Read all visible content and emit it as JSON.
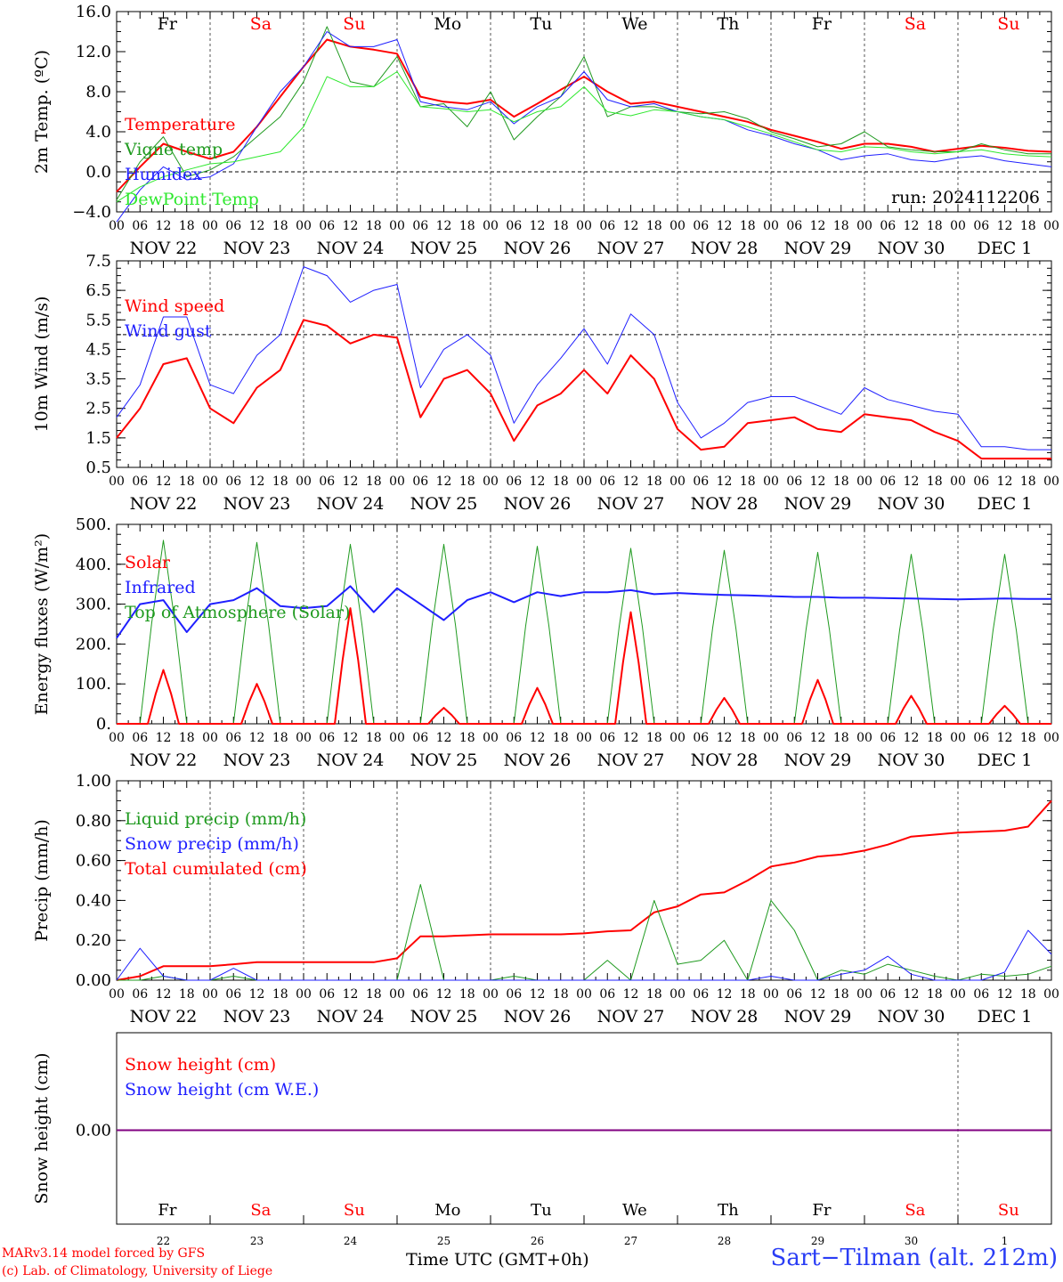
{
  "footer": {
    "model_credit": "MARv3.14 model forced by GFS",
    "lab_credit": "(c) Lab. of Climatology, University of Liege",
    "station": "Sart−Tilman (alt. 212m)",
    "time_axis_label": "Time UTC (GMT+0h)"
  },
  "run_label": "run: 2024112206",
  "days": {
    "weekday_labels": [
      "Fr",
      "Sa",
      "Su",
      "Mo",
      "Tu",
      "We",
      "Th",
      "Fr",
      "Sa",
      "Su"
    ],
    "weekend_flags": [
      false,
      true,
      true,
      false,
      false,
      false,
      false,
      false,
      true,
      true
    ],
    "date_labels": [
      "NOV 22",
      "NOV 23",
      "NOV 24",
      "NOV 25",
      "NOV 26",
      "NOV 27",
      "NOV 28",
      "NOV 29",
      "NOV 30",
      "DEC  1"
    ],
    "day_numbers": [
      "22",
      "23",
      "24",
      "25",
      "26",
      "27",
      "28",
      "29",
      "30",
      "1"
    ],
    "hour_ticks": [
      "00",
      "06",
      "12",
      "18"
    ],
    "hour_ticks_last": "00"
  },
  "colors": {
    "red": "#ff0000",
    "green": "#1f9a1f",
    "blue": "#1f1fff",
    "lightgreen": "#2ee82e",
    "purple": "#800080",
    "weekend": "#ff0000",
    "weekday": "#000000"
  },
  "chart_data": [
    {
      "type": "line",
      "ylabel": "2m Temp. (ºC)",
      "ylim": [
        -4.0,
        16.0
      ],
      "yticks": [
        "16.0",
        "12.0",
        "8.0",
        "4.0",
        "0.0",
        "−4.0"
      ],
      "ytick_values": [
        16,
        12,
        8,
        4,
        0,
        -4
      ],
      "ref_line": 0,
      "x_hours": [
        0,
        6,
        12,
        18,
        24,
        30,
        36,
        42,
        48,
        54,
        60,
        66,
        72,
        78,
        84,
        90,
        96,
        102,
        108,
        114,
        120,
        126,
        132,
        138,
        144,
        150,
        156,
        162,
        168,
        174,
        180,
        186,
        192,
        198,
        204,
        210,
        216,
        222,
        228,
        234,
        240
      ],
      "series": [
        {
          "name": "Temperature",
          "color": "#ff0000",
          "width": 2,
          "values": [
            -2.0,
            0.5,
            2.8,
            2.0,
            1.3,
            2.0,
            4.5,
            7.5,
            10.5,
            13.2,
            12.5,
            12.2,
            11.8,
            7.5,
            7.0,
            6.8,
            7.2,
            5.5,
            6.8,
            8.2,
            9.5,
            8.0,
            6.8,
            7.0,
            6.5,
            6.0,
            5.5,
            5.0,
            4.2,
            3.6,
            3.0,
            2.3,
            2.8,
            2.8,
            2.5,
            2.0,
            2.3,
            2.6,
            2.4,
            2.1,
            2.0
          ]
        },
        {
          "name": "Vigne temp",
          "color": "#1f9a1f",
          "width": 1,
          "values": [
            -2.8,
            1.0,
            3.5,
            -0.5,
            0.2,
            1.5,
            3.5,
            5.5,
            9.0,
            14.5,
            9.0,
            8.5,
            11.5,
            6.5,
            6.8,
            4.5,
            8.0,
            3.2,
            5.5,
            7.5,
            11.5,
            5.5,
            6.5,
            6.5,
            6.0,
            5.8,
            6.0,
            5.3,
            4.0,
            3.3,
            2.5,
            2.8,
            4.0,
            2.5,
            2.2,
            2.0,
            2.0,
            2.8,
            2.2,
            1.8,
            1.8
          ]
        },
        {
          "name": "Humidex",
          "color": "#1f1fff",
          "width": 1,
          "values": [
            -5.0,
            -1.8,
            0.5,
            -0.8,
            -0.5,
            0.8,
            4.5,
            8.0,
            10.5,
            14.0,
            12.5,
            12.5,
            13.2,
            7.0,
            6.5,
            6.2,
            7.0,
            4.8,
            6.5,
            7.5,
            10.0,
            7.2,
            6.5,
            6.8,
            6.0,
            5.5,
            5.2,
            4.2,
            3.6,
            2.8,
            2.2,
            1.2,
            1.6,
            1.8,
            1.2,
            1.0,
            1.4,
            1.6,
            1.1,
            0.8,
            0.5
          ]
        },
        {
          "name": "DewPoint Temp",
          "color": "#2ee82e",
          "width": 1,
          "values": [
            -3.0,
            -1.5,
            -0.5,
            0.2,
            0.8,
            1.0,
            1.5,
            2.0,
            4.5,
            9.5,
            8.5,
            8.5,
            10.0,
            6.5,
            6.3,
            6.0,
            6.2,
            5.0,
            6.0,
            6.5,
            8.5,
            6.0,
            5.6,
            6.2,
            6.0,
            5.5,
            5.2,
            4.5,
            3.8,
            3.0,
            2.2,
            2.0,
            2.5,
            2.4,
            2.0,
            1.8,
            2.0,
            2.2,
            1.8,
            1.6,
            1.5
          ]
        }
      ],
      "legend": [
        {
          "label": "Temperature",
          "color": "#ff0000"
        },
        {
          "label": "Vigne temp",
          "color": "#1f9a1f"
        },
        {
          "label": "Humidex",
          "color": "#1f1fff"
        },
        {
          "label": "DewPoint Temp",
          "color": "#2ee82e"
        }
      ]
    },
    {
      "type": "line",
      "ylabel": "10m Wind (m/s)",
      "ylim": [
        0.5,
        7.5
      ],
      "yticks": [
        "7.5",
        "6.5",
        "5.5",
        "4.5",
        "3.5",
        "2.5",
        "1.5",
        "0.5"
      ],
      "ytick_values": [
        7.5,
        6.5,
        5.5,
        4.5,
        3.5,
        2.5,
        1.5,
        0.5
      ],
      "ref_line": 5.0,
      "x_hours": [
        0,
        6,
        12,
        18,
        24,
        30,
        36,
        42,
        48,
        54,
        60,
        66,
        72,
        78,
        84,
        90,
        96,
        102,
        108,
        114,
        120,
        126,
        132,
        138,
        144,
        150,
        156,
        162,
        168,
        174,
        180,
        186,
        192,
        198,
        204,
        210,
        216,
        222,
        228,
        234,
        240
      ],
      "series": [
        {
          "name": "Wind speed",
          "color": "#ff0000",
          "width": 2,
          "values": [
            1.5,
            2.5,
            4.0,
            4.2,
            2.5,
            2.0,
            3.2,
            3.8,
            5.5,
            5.3,
            4.7,
            5.0,
            4.9,
            2.2,
            3.5,
            3.8,
            3.0,
            1.4,
            2.6,
            3.0,
            3.8,
            3.0,
            4.3,
            3.5,
            1.8,
            1.1,
            1.2,
            2.0,
            2.1,
            2.2,
            1.8,
            1.7,
            2.3,
            2.2,
            2.1,
            1.7,
            1.4,
            0.8,
            0.8,
            0.8,
            0.8
          ]
        },
        {
          "name": "Wind gust",
          "color": "#1f1fff",
          "width": 1,
          "values": [
            2.2,
            3.3,
            5.6,
            5.6,
            3.3,
            3.0,
            4.3,
            5.0,
            7.3,
            7.0,
            6.1,
            6.5,
            6.7,
            3.2,
            4.5,
            5.0,
            4.3,
            2.0,
            3.3,
            4.2,
            5.2,
            4.0,
            5.7,
            5.0,
            2.7,
            1.5,
            2.0,
            2.7,
            2.9,
            2.9,
            2.6,
            2.3,
            3.2,
            2.8,
            2.6,
            2.4,
            2.3,
            1.2,
            1.2,
            1.1,
            1.1
          ]
        }
      ],
      "legend": [
        {
          "label": "Wind speed",
          "color": "#ff0000"
        },
        {
          "label": "Wind gust",
          "color": "#1f1fff"
        }
      ]
    },
    {
      "type": "line",
      "ylabel": "Energy fluxes (W/m²)",
      "ylim": [
        0,
        500
      ],
      "yticks": [
        "500.",
        "400.",
        "300.",
        "200.",
        "100.",
        "0."
      ],
      "ytick_values": [
        500,
        400,
        300,
        200,
        100,
        0
      ],
      "x_hours": [
        0,
        6,
        12,
        18,
        24,
        30,
        36,
        42,
        48,
        54,
        60,
        66,
        72,
        78,
        84,
        90,
        96,
        102,
        108,
        114,
        120,
        126,
        132,
        138,
        144,
        150,
        156,
        162,
        168,
        174,
        180,
        186,
        192,
        198,
        204,
        210,
        216,
        222,
        228,
        234,
        240
      ],
      "solar_peak_hours": [
        12,
        36,
        60,
        84,
        108,
        132,
        156,
        180,
        204,
        228
      ],
      "toa_peaks": [
        460,
        455,
        450,
        450,
        445,
        440,
        435,
        430,
        425,
        425
      ],
      "solar_peaks": [
        135,
        100,
        290,
        40,
        90,
        280,
        65,
        110,
        70,
        45
      ],
      "series": [
        {
          "name": "Infrared",
          "color": "#1f1fff",
          "width": 2,
          "values": [
            215,
            300,
            310,
            230,
            300,
            310,
            340,
            295,
            290,
            295,
            345,
            280,
            340,
            300,
            260,
            310,
            330,
            305,
            330,
            320,
            330,
            330,
            335,
            325,
            328,
            325,
            323,
            322,
            320,
            318,
            318,
            316,
            316,
            315,
            314,
            313,
            312,
            313,
            314,
            313,
            313
          ]
        }
      ],
      "legend": [
        {
          "label": "Solar",
          "color": "#ff0000"
        },
        {
          "label": "Infrared",
          "color": "#1f1fff"
        },
        {
          "label": "Top of Atmosphere (Solar)",
          "color": "#1f9a1f"
        }
      ]
    },
    {
      "type": "line",
      "ylabel": "Precip (mm/h)",
      "ylim": [
        0,
        1.0
      ],
      "yticks": [
        "1.00",
        "0.80",
        "0.60",
        "0.40",
        "0.20",
        "0.00"
      ],
      "ytick_values": [
        1.0,
        0.8,
        0.6,
        0.4,
        0.2,
        0.0
      ],
      "x_hours": [
        0,
        6,
        12,
        18,
        24,
        30,
        36,
        42,
        48,
        54,
        60,
        66,
        72,
        78,
        84,
        90,
        96,
        102,
        108,
        114,
        120,
        126,
        132,
        138,
        144,
        150,
        156,
        162,
        168,
        174,
        180,
        186,
        192,
        198,
        204,
        210,
        216,
        222,
        228,
        234,
        240
      ],
      "series": [
        {
          "name": "Total cumulated (cm)",
          "color": "#ff0000",
          "width": 2,
          "values": [
            0.0,
            0.02,
            0.07,
            0.07,
            0.07,
            0.08,
            0.09,
            0.09,
            0.09,
            0.09,
            0.09,
            0.09,
            0.11,
            0.22,
            0.22,
            0.225,
            0.23,
            0.23,
            0.23,
            0.23,
            0.235,
            0.245,
            0.25,
            0.34,
            0.37,
            0.43,
            0.44,
            0.5,
            0.57,
            0.59,
            0.62,
            0.63,
            0.65,
            0.68,
            0.72,
            0.73,
            0.74,
            0.745,
            0.75,
            0.77,
            0.9
          ]
        },
        {
          "name": "Liquid precip (mm/h)",
          "color": "#1f9a1f",
          "width": 1,
          "values": [
            0.0,
            0.0,
            0.02,
            0.0,
            0.0,
            0.02,
            0.0,
            0.0,
            0.0,
            0.0,
            0.0,
            0.0,
            0.0,
            0.48,
            0.0,
            0.0,
            0.0,
            0.02,
            0.0,
            0.0,
            0.0,
            0.1,
            0.0,
            0.4,
            0.08,
            0.1,
            0.2,
            0.0,
            0.4,
            0.25,
            0.0,
            0.05,
            0.03,
            0.08,
            0.05,
            0.02,
            0.0,
            0.03,
            0.02,
            0.03,
            0.07
          ]
        },
        {
          "name": "Snow precip (mm/h)",
          "color": "#1f1fff",
          "width": 1,
          "values": [
            0.0,
            0.16,
            0.02,
            0.0,
            0.0,
            0.06,
            0.0,
            0.0,
            0.0,
            0.0,
            0.0,
            0.0,
            0.0,
            0.0,
            0.0,
            0.0,
            0.0,
            0.0,
            0.0,
            0.0,
            0.0,
            0.0,
            0.0,
            0.0,
            0.0,
            0.0,
            0.0,
            0.0,
            0.02,
            0.0,
            0.0,
            0.03,
            0.05,
            0.12,
            0.03,
            0.0,
            0.0,
            0.0,
            0.04,
            0.25,
            0.13
          ]
        }
      ],
      "legend": [
        {
          "label": "Liquid precip (mm/h)",
          "color": "#1f9a1f"
        },
        {
          "label": "Snow precip (mm/h)",
          "color": "#1f1fff"
        },
        {
          "label": "Total cumulated (cm)",
          "color": "#ff0000"
        }
      ]
    },
    {
      "type": "line",
      "ylabel": "Snow height (cm)",
      "yticks": [
        "0.00"
      ],
      "ytick_values": [
        0.0
      ],
      "series": [
        {
          "name": "Snow height (cm)",
          "color": "#800080",
          "values": [
            0,
            0
          ]
        },
        {
          "name": "Snow height (cm W.E.)",
          "color": "#800080",
          "values": [
            0,
            0
          ]
        }
      ],
      "legend": [
        {
          "label": "Snow height (cm)",
          "color": "#ff0000"
        },
        {
          "label": "Snow height (cm W.E.)",
          "color": "#1f1fff"
        }
      ]
    }
  ]
}
